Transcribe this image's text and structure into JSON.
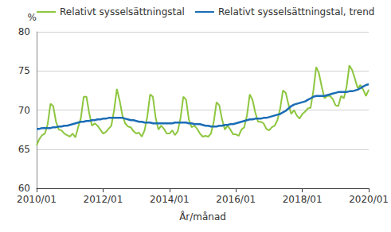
{
  "chart_data": {
    "type": "line",
    "x_label": "År/månad",
    "y_label": "%",
    "categories": [
      "2010/01",
      null,
      null,
      null,
      null,
      null,
      null,
      null,
      null,
      null,
      null,
      null,
      null,
      null,
      null,
      null,
      null,
      null,
      null,
      null,
      null,
      null,
      null,
      null,
      "2012/01",
      null,
      null,
      null,
      null,
      null,
      null,
      null,
      null,
      null,
      null,
      null,
      null,
      null,
      null,
      null,
      null,
      null,
      null,
      null,
      null,
      null,
      null,
      null,
      "2014/01",
      null,
      null,
      null,
      null,
      null,
      null,
      null,
      null,
      null,
      null,
      null,
      null,
      null,
      null,
      null,
      null,
      null,
      null,
      null,
      null,
      null,
      null,
      null,
      "2016/01",
      null,
      null,
      null,
      null,
      null,
      null,
      null,
      null,
      null,
      null,
      null,
      null,
      null,
      null,
      null,
      null,
      null,
      null,
      null,
      null,
      null,
      null,
      null,
      "2018/01",
      null,
      null,
      null,
      null,
      null,
      null,
      null,
      null,
      null,
      null,
      null,
      null,
      null,
      null,
      null,
      null,
      null,
      null,
      null,
      null,
      null,
      null,
      null,
      "2020/01"
    ],
    "series": [
      {
        "name": "Relativt sysselsättningstal",
        "color": "#8dc63f",
        "values": [
          65.5,
          66.3,
          66.8,
          67.0,
          68.2,
          70.8,
          70.5,
          68.5,
          67.5,
          67.4,
          67.0,
          66.8,
          66.6,
          67.0,
          66.5,
          67.8,
          69.0,
          71.7,
          71.7,
          69.6,
          68.0,
          68.3,
          68.0,
          67.5,
          67.0,
          67.2,
          67.6,
          68.0,
          70.0,
          72.7,
          71.2,
          69.3,
          68.3,
          67.9,
          67.8,
          67.3,
          67.0,
          67.1,
          66.6,
          67.4,
          69.2,
          72.0,
          71.7,
          69.0,
          67.5,
          68.0,
          67.6,
          67.0,
          67.0,
          67.4,
          66.8,
          67.3,
          69.0,
          71.7,
          71.3,
          68.8,
          67.8,
          68.0,
          67.6,
          67.0,
          66.6,
          66.7,
          66.6,
          67.0,
          68.5,
          71.0,
          70.6,
          68.8,
          67.5,
          68.0,
          67.5,
          66.9,
          66.9,
          66.7,
          67.5,
          67.8,
          69.3,
          72.0,
          71.3,
          69.7,
          68.5,
          68.5,
          68.3,
          67.6,
          67.4,
          67.8,
          68.0,
          68.7,
          70.2,
          72.5,
          72.2,
          70.7,
          69.5,
          70.0,
          69.3,
          68.9,
          69.5,
          69.8,
          70.2,
          70.3,
          72.5,
          75.5,
          74.7,
          73.0,
          71.5,
          71.8,
          71.8,
          71.4,
          70.6,
          70.5,
          71.8,
          71.5,
          73.0,
          75.7,
          75.1,
          74.0,
          72.8,
          73.2,
          72.6,
          71.8,
          72.6
        ]
      },
      {
        "name": "Relativt sysselsättningstal, trend",
        "color": "#1b6db5",
        "values": [
          67.6,
          67.6,
          67.7,
          67.7,
          67.7,
          67.7,
          67.8,
          67.8,
          67.9,
          67.9,
          68.0,
          68.0,
          68.1,
          68.2,
          68.3,
          68.4,
          68.5,
          68.5,
          68.6,
          68.6,
          68.7,
          68.7,
          68.8,
          68.8,
          68.9,
          68.9,
          69.0,
          69.0,
          69.0,
          69.0,
          69.0,
          69.0,
          68.9,
          68.8,
          68.7,
          68.7,
          68.6,
          68.5,
          68.5,
          68.4,
          68.4,
          68.4,
          68.3,
          68.3,
          68.3,
          68.3,
          68.3,
          68.3,
          68.3,
          68.3,
          68.4,
          68.4,
          68.4,
          68.4,
          68.4,
          68.3,
          68.3,
          68.2,
          68.2,
          68.2,
          68.1,
          68.0,
          68.0,
          67.9,
          67.9,
          67.9,
          68.0,
          68.0,
          68.1,
          68.1,
          68.2,
          68.2,
          68.3,
          68.4,
          68.5,
          68.6,
          68.7,
          68.8,
          68.8,
          68.9,
          68.9,
          68.9,
          69.0,
          69.0,
          69.1,
          69.2,
          69.3,
          69.4,
          69.5,
          69.7,
          69.9,
          70.2,
          70.5,
          70.7,
          70.8,
          70.9,
          71.0,
          71.1,
          71.3,
          71.5,
          71.7,
          71.8,
          71.8,
          71.8,
          71.8,
          71.9,
          72.0,
          72.1,
          72.2,
          72.3,
          72.3,
          72.3,
          72.3,
          72.4,
          72.4,
          72.5,
          72.6,
          72.8,
          73.0,
          73.2,
          73.3
        ]
      }
    ],
    "ylim": [
      60,
      80
    ],
    "yticks": [
      60,
      65,
      70,
      75,
      80
    ],
    "grid": true,
    "legend": "top-left"
  }
}
